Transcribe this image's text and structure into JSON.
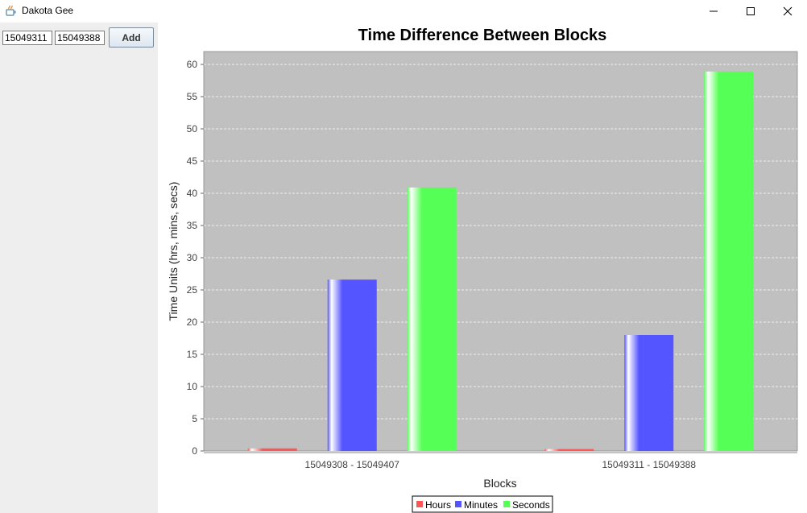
{
  "window": {
    "title": "Dakota Gee"
  },
  "controls": {
    "start_block_value": "15049311",
    "end_block_value": "15049388",
    "add_label": "Add"
  },
  "colors": {
    "hours": "#ff5555",
    "minutes": "#5555ff",
    "seconds": "#55ff55",
    "plot_background": "#c0c0c0"
  },
  "chart_data": {
    "type": "bar",
    "title": "Time Difference Between Blocks",
    "xlabel": "Blocks",
    "ylabel": "Time Units (hrs, mins, secs)",
    "categories": [
      "15049308 - 15049407",
      "15049311 - 15049388"
    ],
    "series": [
      {
        "name": "Hours",
        "values": [
          0.4,
          0.3
        ]
      },
      {
        "name": "Minutes",
        "values": [
          26.6,
          18
        ]
      },
      {
        "name": "Seconds",
        "values": [
          40.9,
          58.9
        ]
      }
    ],
    "ylim": [
      0,
      62
    ],
    "yticks": [
      0,
      5,
      10,
      15,
      20,
      25,
      30,
      35,
      40,
      45,
      50,
      55,
      60
    ],
    "grid": true,
    "legend_position": "bottom"
  }
}
